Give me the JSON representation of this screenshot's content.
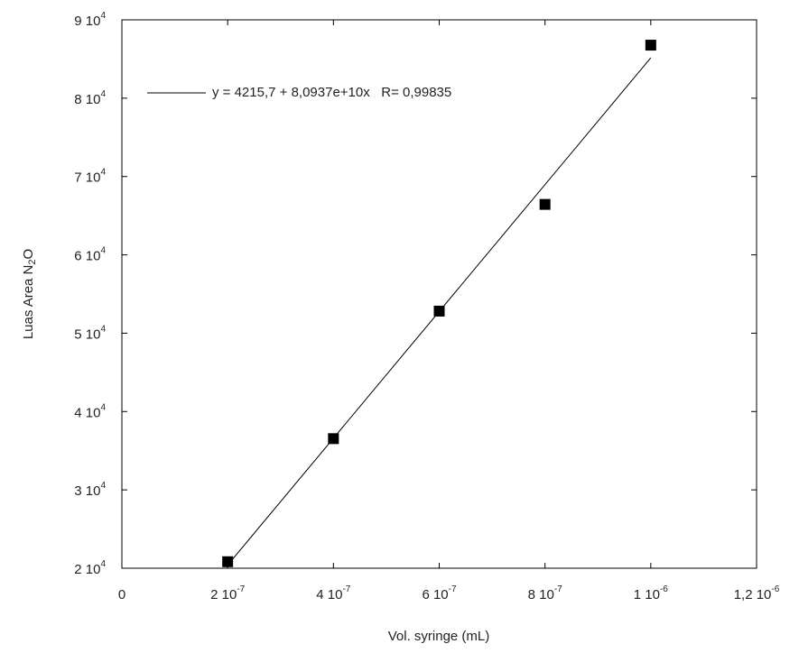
{
  "chart_data": {
    "type": "scatter",
    "x_label": "Vol. syringe (mL)",
    "y_label": "Luas Area N2O",
    "xlim": [
      0,
      1.2e-06
    ],
    "ylim": [
      20000,
      90000
    ],
    "xticks": [
      0,
      {
        "value": 2e-07,
        "label": "2 10-7"
      },
      {
        "value": 4e-07,
        "label": "4 10-7"
      },
      {
        "value": 6e-07,
        "label": "6 10-7"
      },
      {
        "value": 8e-07,
        "label": "8 10-7"
      },
      {
        "value": 1e-06,
        "label": "1 10-6"
      },
      {
        "value": 1.2e-06,
        "label": "1,2 10-6"
      }
    ],
    "yticks": [
      {
        "value": 20000,
        "label": "2 104"
      },
      {
        "value": 30000,
        "label": "3 104"
      },
      {
        "value": 40000,
        "label": "4 104"
      },
      {
        "value": 50000,
        "label": "5 104"
      },
      {
        "value": 60000,
        "label": "6 104"
      },
      {
        "value": 70000,
        "label": "7 104"
      },
      {
        "value": 80000,
        "label": "8 104"
      },
      {
        "value": 90000,
        "label": "9 104"
      }
    ],
    "legend": "top-left",
    "series": [
      {
        "color": "#000000",
        "marker": "square",
        "x": [
          2e-07,
          4e-07,
          6e-07,
          8e-07,
          1e-06
        ],
        "values": [
          20830,
          36540,
          52820,
          66440,
          86770
        ]
      },
      {
        "name": "y = 4215,7 + 8,0937e+10x   R= 0,99835",
        "color": "#000000",
        "marker": "line",
        "x": [
          2e-07,
          1e-06
        ],
        "values": [
          20403.1,
          85152.7
        ]
      }
    ]
  }
}
